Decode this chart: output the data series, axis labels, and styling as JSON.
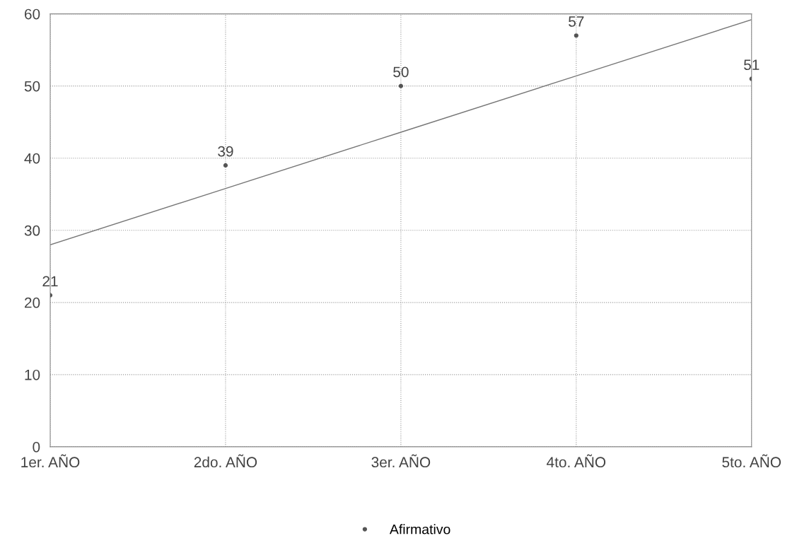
{
  "chart_data": {
    "type": "scatter",
    "categories": [
      "1er. AÑO",
      "2do. AÑO",
      "3er. AÑO",
      "4to. AÑO",
      "5to. AÑO"
    ],
    "series": [
      {
        "name": "Afirmativo",
        "marker": "circle",
        "color": "#555555",
        "values": [
          21,
          39,
          50,
          57,
          51
        ],
        "data_labels": true
      },
      {
        "type": "line",
        "marker": "none",
        "color": "#777777",
        "values": [
          28.0,
          35.8,
          43.6,
          51.4,
          59.2
        ]
      }
    ],
    "ylim": [
      0,
      60
    ],
    "yticks": [
      0,
      10,
      20,
      30,
      40,
      50,
      60
    ],
    "grid": true,
    "legend": "bottom",
    "line_style": "solid"
  }
}
